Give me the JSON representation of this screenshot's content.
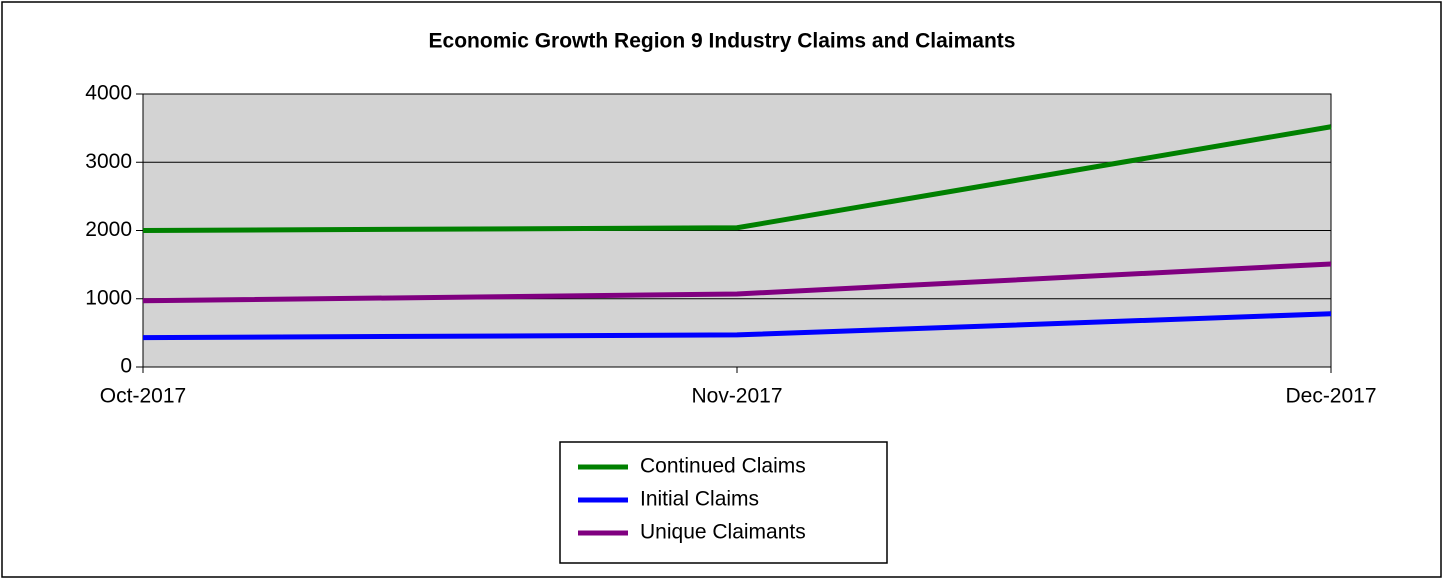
{
  "chart_data": {
    "type": "line",
    "title": "Economic Growth Region 9 Industry Claims and Claimants",
    "categories": [
      "Oct-2017",
      "Nov-2017",
      "Dec-2017"
    ],
    "series": [
      {
        "name": "Continued Claims",
        "color": "#008000",
        "values": [
          2000,
          2040,
          3520
        ]
      },
      {
        "name": "Initial Claims",
        "color": "#0000ff",
        "values": [
          430,
          470,
          780
        ]
      },
      {
        "name": "Unique Claimants",
        "color": "#800080",
        "values": [
          970,
          1070,
          1510
        ]
      }
    ],
    "ylim": [
      0,
      4000
    ],
    "yticks": [
      0,
      1000,
      2000,
      3000,
      4000
    ],
    "grid": true,
    "legend": "bottom"
  }
}
